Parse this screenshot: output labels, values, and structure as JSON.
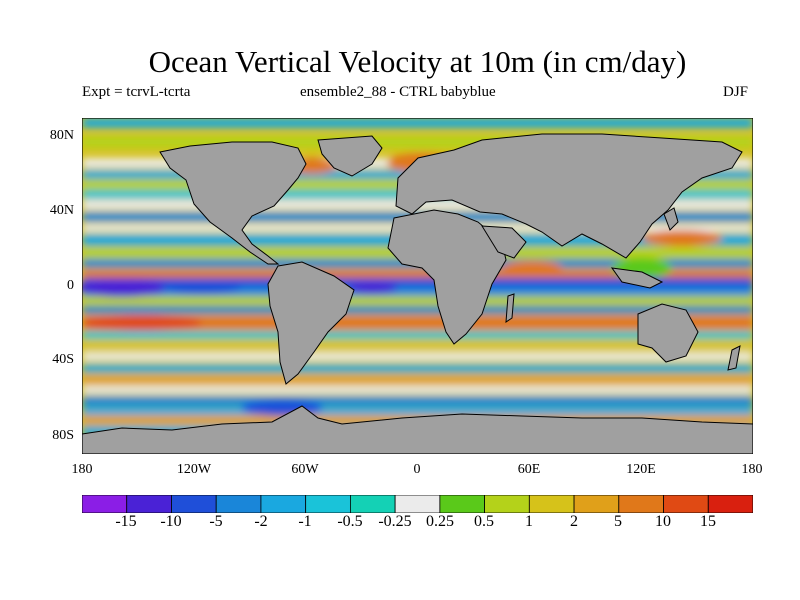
{
  "title": "Ocean Vertical Velocity at 10m (in cm/day)",
  "subtitle_left": "Expt = tcrvL-tcrta",
  "subtitle_center": "ensemble2_88 - CTRL babyblue",
  "season": "DJF",
  "y_axis": {
    "ticks": [
      "80N",
      "40N",
      "0",
      "40S",
      "80S"
    ],
    "range": [
      -90,
      90
    ]
  },
  "x_axis": {
    "ticks": [
      "180",
      "120W",
      "60W",
      "0",
      "60E",
      "120E",
      "180"
    ],
    "range": [
      -180,
      180
    ]
  },
  "land_color": "#a0a0a0",
  "colorbar": {
    "labels": [
      "-15",
      "-10",
      "-5",
      "-2",
      "-1",
      "-0.5",
      "-0.25",
      "0.25",
      "0.5",
      "1",
      "2",
      "5",
      "10",
      "15"
    ],
    "colors": [
      "#8b1ee6",
      "#4a22d6",
      "#1f4fd9",
      "#1a86d9",
      "#1aa8e0",
      "#1ac3d9",
      "#14d1b5",
      "#ebebeb",
      "#5ac91a",
      "#b4d21a",
      "#d6c21a",
      "#e0a01a",
      "#e0781a",
      "#e04a14",
      "#d9200f"
    ]
  }
}
